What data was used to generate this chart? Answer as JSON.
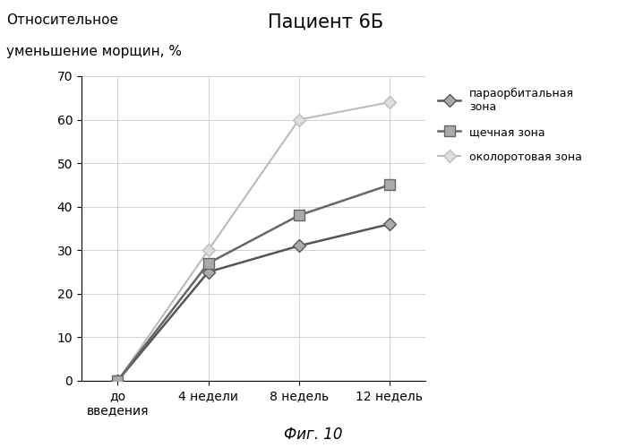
{
  "title": "Пациент 6Б",
  "ylabel_line1": "Относительное",
  "ylabel_line2": "уменьшение морщин, %",
  "xlabel_caption": "Фиг. 10",
  "x_labels": [
    "до\nвведения",
    "4 недели",
    "8 недель",
    "12 недель"
  ],
  "x_positions": [
    0,
    1,
    2,
    3
  ],
  "series": [
    {
      "name": "параорбитальная\nзона",
      "values": [
        0,
        25,
        31,
        36
      ],
      "color": "#555555",
      "marker": "D",
      "marker_size": 7,
      "marker_facecolor": "#aaaaaa",
      "linewidth": 1.8,
      "linestyle": "-",
      "zorder": 3
    },
    {
      "name": "щечная зона",
      "values": [
        0,
        27,
        38,
        45
      ],
      "color": "#666666",
      "marker": "s",
      "marker_size": 9,
      "marker_facecolor": "#aaaaaa",
      "linewidth": 1.8,
      "linestyle": "-",
      "zorder": 4
    },
    {
      "name": "околоротовая зона",
      "values": [
        0,
        30,
        60,
        64
      ],
      "color": "#bbbbbb",
      "marker": "D",
      "marker_size": 7,
      "marker_facecolor": "#dddddd",
      "linewidth": 1.5,
      "linestyle": "-",
      "zorder": 2
    }
  ],
  "ylim": [
    0,
    70
  ],
  "yticks": [
    0,
    10,
    20,
    30,
    40,
    50,
    60,
    70
  ],
  "background_color": "#ffffff",
  "grid_color": "#cccccc",
  "title_fontsize": 15,
  "label_fontsize": 11,
  "tick_fontsize": 10,
  "legend_fontsize": 9
}
